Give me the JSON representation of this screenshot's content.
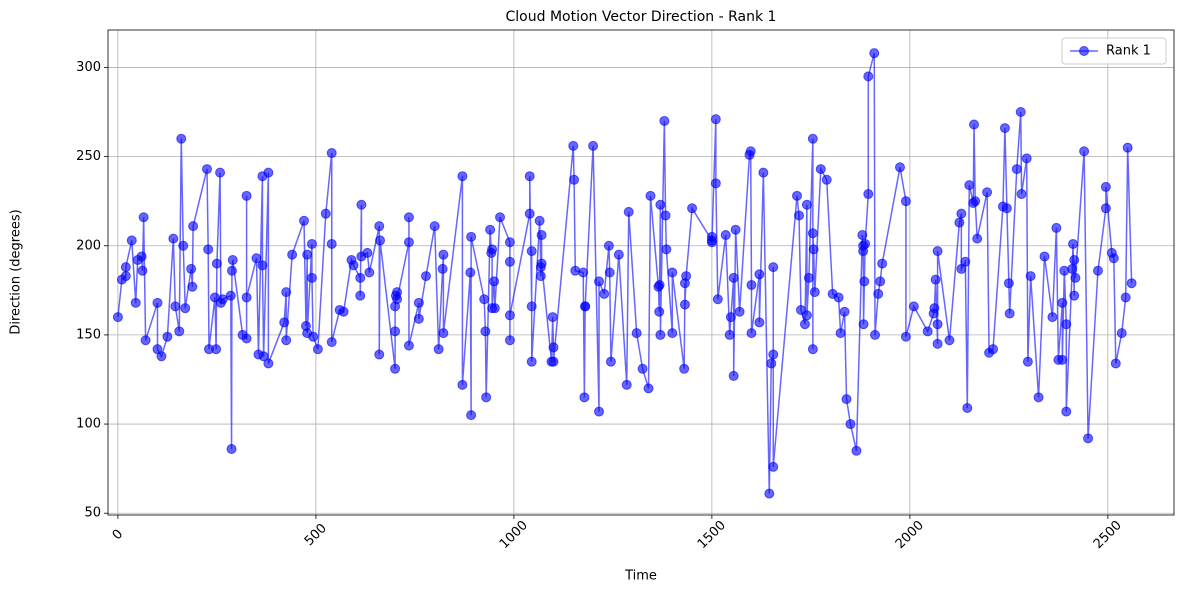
{
  "chart_data": {
    "type": "line",
    "title": "Cloud Motion Vector Direction - Rank 1",
    "x_label": "Time",
    "y_label": "Direction (degrees)",
    "xlim": [
      -25,
      2667
    ],
    "ylim": [
      49,
      321
    ],
    "xticks": [
      0,
      500,
      1000,
      1500,
      2000,
      2500
    ],
    "yticks": [
      50,
      100,
      150,
      200,
      250,
      300
    ],
    "grid": true,
    "legend": "upper right",
    "marker": "o",
    "x": [
      0,
      10,
      20,
      20,
      35,
      45,
      50,
      60,
      62,
      65,
      70,
      100,
      100,
      110,
      125,
      140,
      145,
      155,
      160,
      165,
      170,
      185,
      188,
      190,
      225,
      228,
      230,
      245,
      248,
      250,
      258,
      260,
      265,
      285,
      287,
      288,
      290,
      315,
      325,
      325,
      325,
      350,
      355,
      365,
      365,
      368,
      380,
      380,
      420,
      425,
      425,
      440,
      470,
      475,
      478,
      478,
      490,
      490,
      493,
      505,
      525,
      540,
      540,
      540,
      560,
      570,
      590,
      595,
      612,
      612,
      615,
      615,
      630,
      635,
      660,
      660,
      662,
      700,
      700,
      700,
      702,
      705,
      705,
      735,
      735,
      735,
      760,
      760,
      778,
      800,
      810,
      820,
      822,
      822,
      870,
      870,
      890,
      892,
      892,
      925,
      928,
      930,
      940,
      943,
      945,
      945,
      950,
      952,
      965,
      990,
      990,
      990,
      990,
      1040,
      1040,
      1045,
      1045,
      1045,
      1065,
      1068,
      1068,
      1070,
      1070,
      1095,
      1098,
      1100,
      1100,
      1150,
      1152,
      1155,
      1175,
      1178,
      1180,
      1180,
      1200,
      1215,
      1215,
      1228,
      1240,
      1242,
      1245,
      1265,
      1285,
      1290,
      1310,
      1325,
      1340,
      1345,
      1365,
      1367,
      1368,
      1370,
      1370,
      1380,
      1383,
      1385,
      1400,
      1400,
      1430,
      1432,
      1432,
      1435,
      1450,
      1500,
      1500,
      1500,
      1510,
      1510,
      1515,
      1535,
      1545,
      1548,
      1555,
      1555,
      1560,
      1570,
      1595,
      1598,
      1600,
      1600,
      1620,
      1620,
      1630,
      1645,
      1650,
      1655,
      1655,
      1655,
      1715,
      1720,
      1725,
      1735,
      1740,
      1740,
      1745,
      1755,
      1755,
      1755,
      1757,
      1760,
      1775,
      1790,
      1805,
      1820,
      1825,
      1835,
      1840,
      1850,
      1865,
      1880,
      1882,
      1882,
      1883,
      1885,
      1887,
      1895,
      1895,
      1910,
      1912,
      1920,
      1925,
      1930,
      1975,
      1990,
      1990,
      2010,
      2045,
      2060,
      2062,
      2065,
      2070,
      2070,
      2070,
      2100,
      2125,
      2130,
      2130,
      2140,
      2145,
      2150,
      2160,
      2162,
      2165,
      2170,
      2195,
      2200,
      2210,
      2235,
      2240,
      2245,
      2250,
      2252,
      2270,
      2280,
      2282,
      2295,
      2298,
      2305,
      2325,
      2340,
      2360,
      2370,
      2375,
      2385,
      2385,
      2390,
      2395,
      2395,
      2410,
      2412,
      2415,
      2415,
      2418,
      2440,
      2450,
      2475,
      2495,
      2495,
      2510,
      2515,
      2520,
      2535,
      2545,
      2550,
      2560
    ],
    "series": [
      {
        "name": "Rank 1",
        "color": "#0000ff",
        "values": [
          160,
          181,
          183,
          188,
          203,
          168,
          192,
          194,
          186,
          216,
          147,
          168,
          142,
          138,
          149,
          204,
          166,
          152,
          260,
          200,
          165,
          187,
          177,
          211,
          243,
          198,
          142,
          171,
          142,
          190,
          241,
          168,
          170,
          172,
          86,
          186,
          192,
          150,
          148,
          228,
          171,
          193,
          139,
          239,
          189,
          138,
          241,
          134,
          157,
          174,
          147,
          195,
          214,
          155,
          195,
          151,
          201,
          182,
          149,
          142,
          218,
          252,
          201,
          146,
          164,
          163,
          192,
          189,
          182,
          172,
          223,
          194,
          196,
          185,
          211,
          139,
          203,
          131,
          152,
          166,
          172,
          174,
          170,
          202,
          216,
          144,
          168,
          159,
          183,
          211,
          142,
          187,
          195,
          151,
          239,
          122,
          185,
          105,
          205,
          170,
          152,
          115,
          209,
          196,
          198,
          165,
          180,
          165,
          216,
          202,
          191,
          147,
          161,
          218,
          239,
          166,
          197,
          135,
          214,
          188,
          183,
          206,
          190,
          135,
          160,
          143,
          135,
          256,
          237,
          186,
          185,
          115,
          166,
          166,
          256,
          107,
          180,
          173,
          200,
          185,
          135,
          195,
          122,
          219,
          151,
          131,
          120,
          228,
          177,
          163,
          178,
          223,
          150,
          270,
          217,
          198,
          151,
          185,
          131,
          179,
          167,
          183,
          221,
          203,
          205,
          202,
          271,
          235,
          170,
          206,
          150,
          160,
          182,
          127,
          209,
          163,
          251,
          253,
          178,
          151,
          184,
          157,
          241,
          61,
          134,
          139,
          188,
          76,
          228,
          217,
          164,
          156,
          223,
          161,
          182,
          260,
          142,
          207,
          198,
          174,
          243,
          237,
          173,
          171,
          151,
          163,
          114,
          100,
          85,
          206,
          197,
          200,
          156,
          180,
          201,
          229,
          295,
          308,
          150,
          173,
          180,
          190,
          244,
          225,
          149,
          166,
          152,
          162,
          165,
          181,
          145,
          156,
          197,
          147,
          213,
          218,
          187,
          191,
          109,
          234,
          224,
          268,
          225,
          204,
          230,
          140,
          142,
          222,
          266,
          221,
          179,
          162,
          243,
          275,
          229,
          249,
          135,
          183,
          115,
          194,
          160,
          210,
          136,
          168,
          136,
          186,
          156,
          107,
          187,
          201,
          172,
          192,
          182,
          253,
          92,
          186,
          221,
          233,
          196,
          193,
          134,
          151,
          171,
          255,
          179
        ]
      }
    ]
  }
}
